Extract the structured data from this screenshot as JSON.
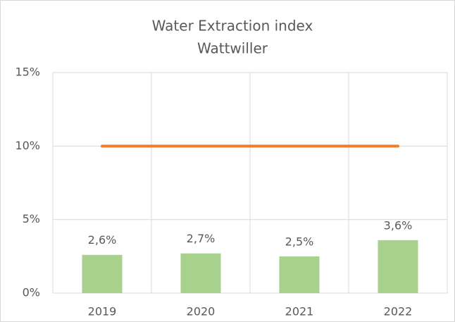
{
  "chart_data": {
    "type": "bar",
    "title": "Water Extraction index",
    "subtitle": "Wattwiller",
    "categories": [
      "2019",
      "2020",
      "2021",
      "2022"
    ],
    "series": [
      {
        "type": "bar",
        "color": "#a9d18e",
        "values": [
          2.6,
          2.7,
          2.5,
          3.6
        ],
        "value_labels": [
          "2,6%",
          "2,7%",
          "2,5%",
          "3,6%"
        ]
      },
      {
        "type": "line",
        "color": "#ed7d31",
        "values": [
          10,
          10,
          10,
          10
        ]
      }
    ],
    "ylim": [
      0,
      15
    ],
    "yticks": [
      {
        "value": 0,
        "label": "0%"
      },
      {
        "value": 5,
        "label": "5%"
      },
      {
        "value": 10,
        "label": "10%"
      },
      {
        "value": 15,
        "label": "15%"
      }
    ],
    "grid": true
  }
}
